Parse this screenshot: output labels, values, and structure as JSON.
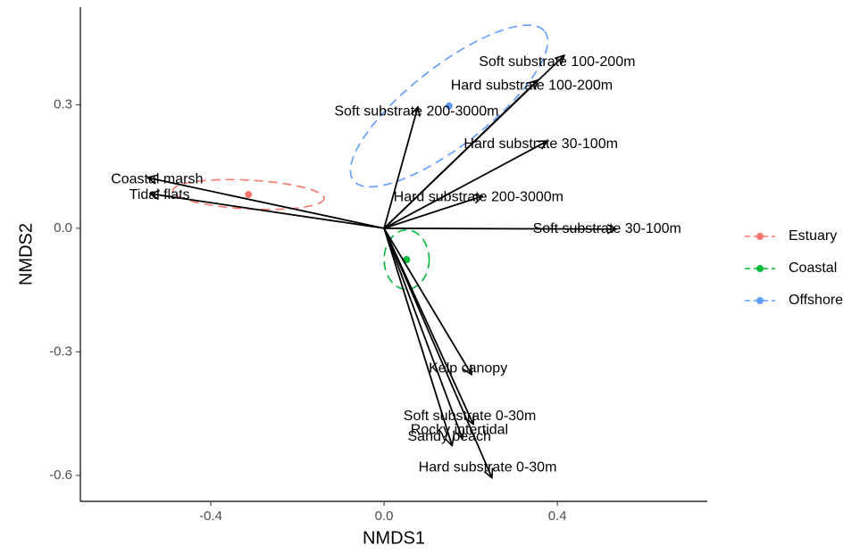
{
  "chart_data": {
    "type": "biplot",
    "x_label": "NMDS1",
    "y_label": "NMDS2",
    "xlim": [
      -0.701,
      0.746
    ],
    "ylim": [
      -0.663,
      0.537
    ],
    "xticks": [
      -0.4,
      {
        "value": 0,
        "label": "0.0"
      },
      0.4
    ],
    "yticks": [
      -0.6,
      -0.3,
      {
        "value": 0,
        "label": "0.0"
      },
      0.3
    ],
    "vectors": {
      "color": "#000000",
      "labels": [
        "Soft substrate 100-200m",
        "Hard substrate 100-200m",
        "Soft substrate 200-3000m",
        "Hard substrate 30-100m",
        "Hard substrate 200-3000m",
        "Soft substrate 30-100m",
        "Coastal marsh",
        "Tidal flats",
        "Kelp canopy",
        "Soft substrate 0-30m",
        "Rocky intertidal",
        "Sandy beach",
        "Hard substrate 0-30m"
      ],
      "x": [
        0.416,
        0.355,
        0.078,
        0.377,
        0.227,
        0.536,
        -0.546,
        -0.54,
        0.202,
        0.206,
        0.181,
        0.157,
        0.249
      ],
      "y": [
        0.42,
        0.36,
        0.295,
        0.212,
        0.078,
        -0.002,
        0.123,
        0.084,
        -0.355,
        -0.476,
        -0.511,
        -0.528,
        -0.606
      ]
    },
    "series": [
      {
        "name": "Estuary",
        "color": "#F8766D",
        "x": -0.313,
        "y": 0.082,
        "ellipse": {
          "rx": 0.175,
          "ry": 0.035,
          "angle": -3
        }
      },
      {
        "name": "Coastal",
        "color": "#00BA38",
        "x": 0.052,
        "y": -0.076,
        "ellipse": {
          "rx": 0.052,
          "ry": 0.072,
          "angle": 0
        }
      },
      {
        "name": "Offshore",
        "color": "#619CFF",
        "x": 0.15,
        "y": 0.297,
        "ellipse": {
          "rx": 0.28,
          "ry": 0.096,
          "angle": 38
        }
      }
    ],
    "legend": "right"
  }
}
